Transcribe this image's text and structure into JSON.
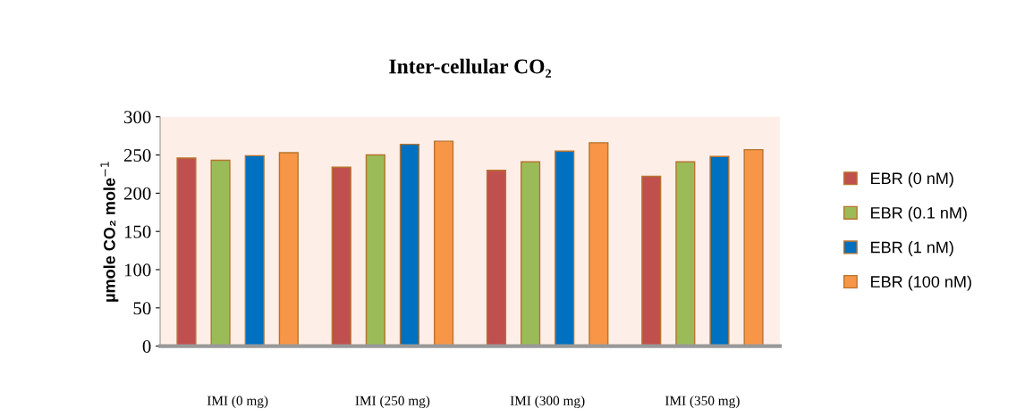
{
  "chart_data": {
    "type": "bar",
    "title": "Inter-cellular CO₂",
    "ylabel": "µmole CO₂ mole$^{−1}$",
    "categories": [
      "IMI (0 mg)",
      "IMI (250 mg)",
      "IMI (300 mg)",
      "IMI (350 mg)"
    ],
    "series": [
      {
        "name": "EBR (0 nM)",
        "color": "#c0504d",
        "values": [
          246,
          234,
          230,
          222
        ]
      },
      {
        "name": "EBR (0.1 nM)",
        "color": "#9bbb59",
        "values": [
          243,
          250,
          241,
          241
        ]
      },
      {
        "name": "EBR (1 nM)",
        "color": "#0070c0",
        "values": [
          249,
          264,
          255,
          248
        ]
      },
      {
        "name": "EBR (100 nM)",
        "color": "#f79646",
        "values": [
          253,
          268,
          266,
          257
        ]
      }
    ],
    "ylim": [
      0,
      300
    ],
    "yticks": [
      0,
      50,
      100,
      150,
      200,
      250,
      300
    ],
    "grid": false,
    "legend": "right"
  }
}
